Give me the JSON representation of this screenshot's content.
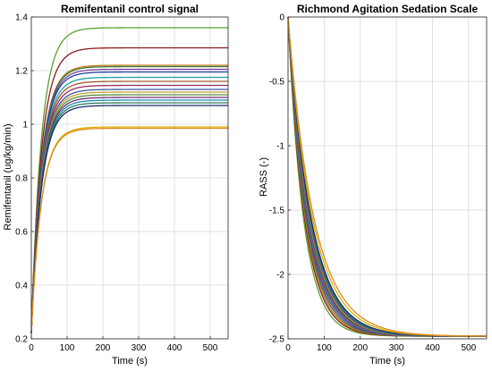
{
  "chart_data": [
    {
      "type": "line",
      "title": "Remifentanil control signal",
      "xlabel": "Time (s)",
      "ylabel": "Remifentanil (ug/kg/min)",
      "xlim": [
        0,
        550
      ],
      "ylim": [
        0.2,
        1.4
      ],
      "xticks": [
        "0",
        "100",
        "200",
        "300",
        "400",
        "500"
      ],
      "yticks": [
        "0.2",
        "0.4",
        "0.6",
        "0.8",
        "1",
        "1.2",
        "1.4"
      ],
      "grid": true,
      "start_value": 0.22,
      "time_constant_s": 28,
      "series": [
        {
          "final": 1.36,
          "color": "#5aa02c"
        },
        {
          "final": 1.285,
          "color": "#8b1a1a"
        },
        {
          "final": 1.22,
          "color": "#c07a1a"
        },
        {
          "final": 1.215,
          "color": "#3a7a3a"
        },
        {
          "final": 1.205,
          "color": "#7b3fa0"
        },
        {
          "final": 1.195,
          "color": "#1f3fa0"
        },
        {
          "final": 1.175,
          "color": "#1aa0a0"
        },
        {
          "final": 1.16,
          "color": "#a05a2c"
        },
        {
          "final": 1.145,
          "color": "#9a2a5a"
        },
        {
          "final": 1.13,
          "color": "#3a5aa0"
        },
        {
          "final": 1.12,
          "color": "#c0a030"
        },
        {
          "final": 1.11,
          "color": "#5a8a3a"
        },
        {
          "final": 1.1,
          "color": "#6a2a7a"
        },
        {
          "final": 1.09,
          "color": "#1a8ab0"
        },
        {
          "final": 1.08,
          "color": "#2a7a5a"
        },
        {
          "final": 1.07,
          "color": "#1a2a6a"
        },
        {
          "final": 0.99,
          "color": "#d9b000"
        },
        {
          "final": 0.985,
          "color": "#e08a20"
        }
      ]
    },
    {
      "type": "line",
      "title": "Richmond Agitation Sedation Scale",
      "xlabel": "Time (s)",
      "ylabel": "RASS (-)",
      "xlim": [
        0,
        550
      ],
      "ylim": [
        -2.5,
        0
      ],
      "xticks": [
        "0",
        "100",
        "200",
        "300",
        "400",
        "500"
      ],
      "yticks": [
        "-2.5",
        "-2",
        "-1.5",
        "-1",
        "-0.5",
        "0"
      ],
      "grid": true,
      "start_value": 0,
      "final_value": -2.48,
      "series": [
        {
          "time_constant_s": 43,
          "color": "#5aa02c"
        },
        {
          "time_constant_s": 46,
          "color": "#8b1a1a"
        },
        {
          "time_constant_s": 48,
          "color": "#c07a1a"
        },
        {
          "time_constant_s": 50,
          "color": "#3a7a3a"
        },
        {
          "time_constant_s": 52,
          "color": "#7b3fa0"
        },
        {
          "time_constant_s": 54,
          "color": "#1f3fa0"
        },
        {
          "time_constant_s": 55,
          "color": "#1aa0a0"
        },
        {
          "time_constant_s": 56,
          "color": "#a05a2c"
        },
        {
          "time_constant_s": 57,
          "color": "#9a2a5a"
        },
        {
          "time_constant_s": 58,
          "color": "#3a5aa0"
        },
        {
          "time_constant_s": 59,
          "color": "#c0a030"
        },
        {
          "time_constant_s": 60,
          "color": "#5a8a3a"
        },
        {
          "time_constant_s": 61,
          "color": "#6a2a7a"
        },
        {
          "time_constant_s": 62,
          "color": "#1a8ab0"
        },
        {
          "time_constant_s": 63,
          "color": "#2a7a5a"
        },
        {
          "time_constant_s": 64,
          "color": "#1a2a6a"
        },
        {
          "time_constant_s": 68,
          "color": "#d9b000"
        },
        {
          "time_constant_s": 72,
          "color": "#e08a20"
        }
      ]
    }
  ]
}
